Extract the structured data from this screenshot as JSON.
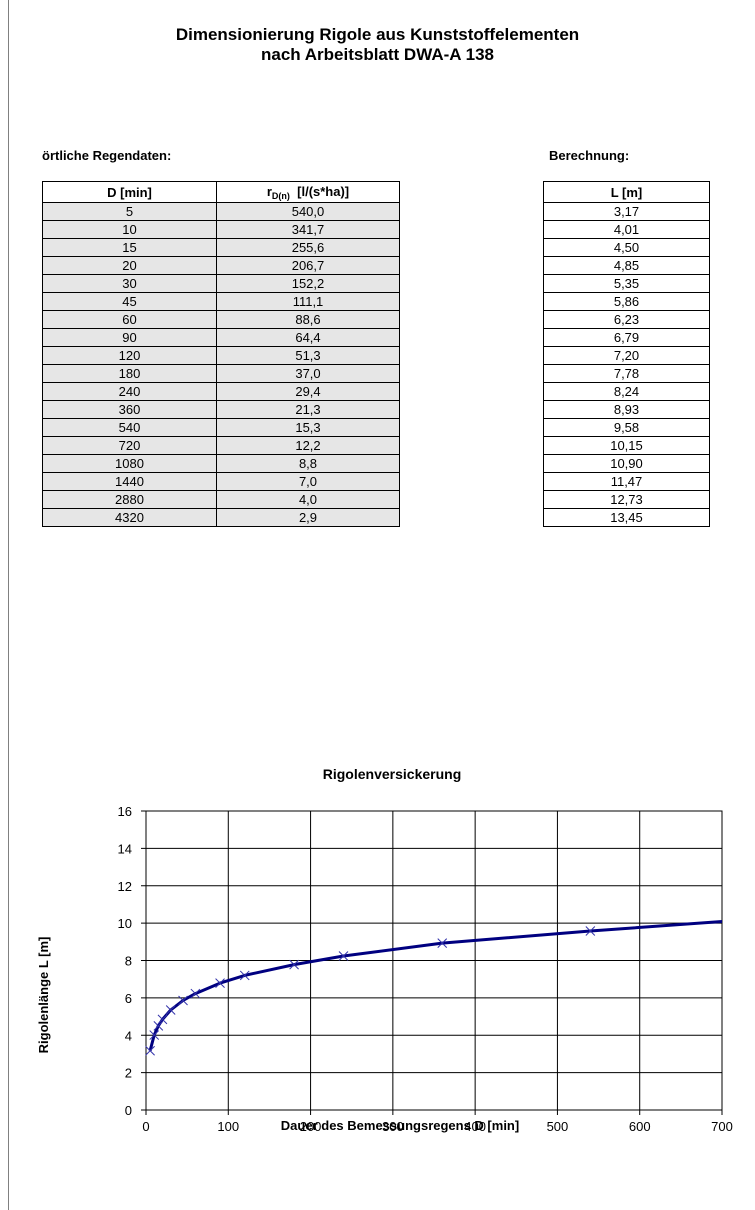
{
  "header": {
    "title_line1": "Dimensionierung Rigole aus Kunststoffelementen",
    "title_line2": "nach Arbeitsblatt DWA-A 138"
  },
  "rain_section": {
    "label": "örtliche Regendaten:",
    "col1_header": "D  [min]",
    "col2_header_prefix": "r",
    "col2_header_sub": "D(n)",
    "col2_header_unit": "[l/(s*ha)]",
    "rows": [
      {
        "d": "5",
        "r": "540,0"
      },
      {
        "d": "10",
        "r": "341,7"
      },
      {
        "d": "15",
        "r": "255,6"
      },
      {
        "d": "20",
        "r": "206,7"
      },
      {
        "d": "30",
        "r": "152,2"
      },
      {
        "d": "45",
        "r": "111,1"
      },
      {
        "d": "60",
        "r": "88,6"
      },
      {
        "d": "90",
        "r": "64,4"
      },
      {
        "d": "120",
        "r": "51,3"
      },
      {
        "d": "180",
        "r": "37,0"
      },
      {
        "d": "240",
        "r": "29,4"
      },
      {
        "d": "360",
        "r": "21,3"
      },
      {
        "d": "540",
        "r": "15,3"
      },
      {
        "d": "720",
        "r": "12,2"
      },
      {
        "d": "1080",
        "r": "8,8"
      },
      {
        "d": "1440",
        "r": "7,0"
      },
      {
        "d": "2880",
        "r": "4,0"
      },
      {
        "d": "4320",
        "r": "2,9"
      }
    ]
  },
  "calc_section": {
    "label": "Berechnung:",
    "col_header": "L [m]",
    "rows": [
      "3,17",
      "4,01",
      "4,50",
      "4,85",
      "5,35",
      "5,86",
      "6,23",
      "6,79",
      "7,20",
      "7,78",
      "8,24",
      "8,93",
      "9,58",
      "10,15",
      "10,90",
      "11,47",
      "12,73",
      "13,45"
    ]
  },
  "chart_data": {
    "type": "line",
    "title": "Rigolenversickerung",
    "xlabel": "Dauer des Bemessungsregens  D [min]",
    "ylabel": "Rigolenlänge L [m]",
    "xlim": [
      0,
      700
    ],
    "ylim": [
      0,
      16
    ],
    "xticks": [
      0,
      100,
      200,
      300,
      400,
      500,
      600,
      700
    ],
    "yticks": [
      0,
      2,
      4,
      6,
      8,
      10,
      12,
      14,
      16
    ],
    "grid": true,
    "line_color": "#000080",
    "x": [
      5,
      10,
      15,
      20,
      30,
      45,
      60,
      90,
      120,
      180,
      240,
      360,
      540,
      720
    ],
    "y": [
      3.17,
      4.01,
      4.5,
      4.85,
      5.35,
      5.86,
      6.23,
      6.79,
      7.2,
      7.78,
      8.24,
      8.93,
      9.58,
      10.15
    ]
  }
}
